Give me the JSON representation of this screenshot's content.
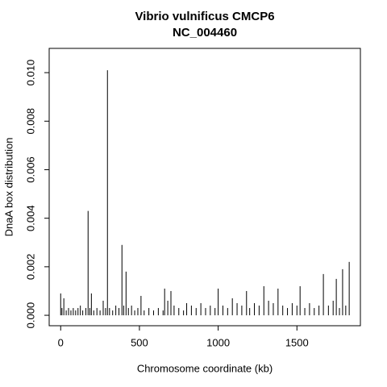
{
  "chart_data": {
    "type": "spike",
    "title": "Vibrio vulnificus CMCP6",
    "subtitle": "NC_004460",
    "x_label": "Chromosome coordinate (kb)",
    "y_label": "DnaA box distribution",
    "color": "#000000",
    "x": [
      0,
      8,
      20,
      35,
      50,
      65,
      80,
      95,
      110,
      125,
      140,
      160,
      174,
      185,
      195,
      210,
      230,
      250,
      270,
      285,
      297,
      310,
      330,
      350,
      370,
      389,
      400,
      415,
      430,
      450,
      470,
      490,
      510,
      530,
      560,
      590,
      620,
      650,
      660,
      680,
      700,
      720,
      750,
      780,
      800,
      830,
      860,
      890,
      920,
      950,
      980,
      1000,
      1030,
      1060,
      1090,
      1120,
      1150,
      1180,
      1200,
      1230,
      1260,
      1290,
      1320,
      1350,
      1380,
      1410,
      1440,
      1470,
      1500,
      1520,
      1550,
      1580,
      1610,
      1640,
      1668,
      1700,
      1730,
      1750,
      1770,
      1790,
      1810,
      1832
    ],
    "values": [
      0.0009,
      0.0003,
      0.0007,
      0.0002,
      0.0003,
      0.0002,
      0.0003,
      0.0002,
      0.0003,
      0.0004,
      0.0002,
      0.0003,
      0.0043,
      0.0003,
      0.0009,
      0.0002,
      0.0003,
      0.0002,
      0.0006,
      0.0003,
      0.0101,
      0.0003,
      0.0002,
      0.0004,
      0.0003,
      0.0029,
      0.0004,
      0.0018,
      0.0003,
      0.0004,
      0.0002,
      0.0003,
      0.0008,
      0.0002,
      0.0003,
      0.0002,
      0.0003,
      0.0002,
      0.0011,
      0.0006,
      0.001,
      0.0004,
      0.0003,
      0.0002,
      0.0005,
      0.0004,
      0.0003,
      0.0005,
      0.0003,
      0.0004,
      0.0003,
      0.0011,
      0.0004,
      0.0003,
      0.0007,
      0.0005,
      0.0004,
      0.001,
      0.0003,
      0.0005,
      0.0004,
      0.0012,
      0.0006,
      0.0005,
      0.0011,
      0.0004,
      0.0003,
      0.0005,
      0.0004,
      0.0012,
      0.0003,
      0.0005,
      0.0003,
      0.0004,
      0.0017,
      0.0004,
      0.0006,
      0.0015,
      0.0003,
      0.0019,
      0.0004,
      0.0022
    ],
    "xlim": [
      -73,
      1903
    ],
    "xticks": [
      0,
      500,
      1000,
      1500
    ],
    "ylim": [
      -0.00043,
      0.011
    ],
    "yticks": [
      {
        "value": 0,
        "label": "0.000"
      },
      {
        "value": 0.002,
        "label": "0.002"
      },
      {
        "value": 0.004,
        "label": "0.004"
      },
      {
        "value": 0.006,
        "label": "0.006"
      },
      {
        "value": 0.008,
        "label": "0.008"
      },
      {
        "value": 0.01,
        "label": "0.010"
      }
    ]
  }
}
